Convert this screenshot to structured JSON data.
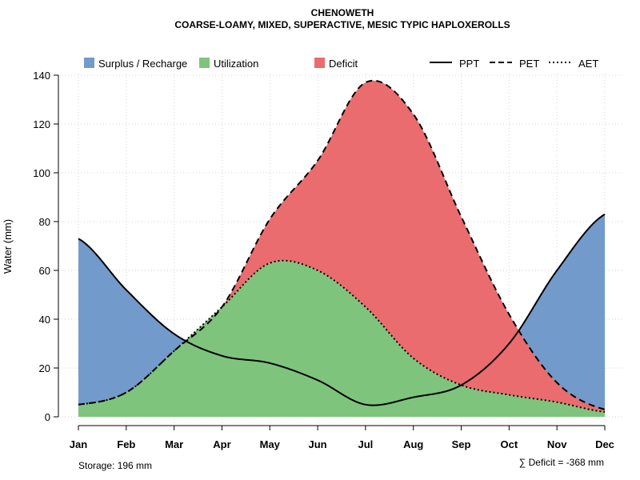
{
  "chart_data": {
    "type": "area",
    "title": "CHENOWETH",
    "subtitle": "COARSE-LOAMY, MIXED, SUPERACTIVE, MESIC TYPIC HAPLOXEROLLS",
    "xlabel": "",
    "ylabel": "Water (mm)",
    "ylim": [
      0,
      140
    ],
    "yticks": [
      0,
      20,
      40,
      60,
      80,
      100,
      120,
      140
    ],
    "grid": true,
    "categories": [
      "Jan",
      "Feb",
      "Mar",
      "Apr",
      "May",
      "Jun",
      "Jul",
      "Aug",
      "Sep",
      "Oct",
      "Nov",
      "Dec"
    ],
    "series": [
      {
        "name": "PPT",
        "style": "solid",
        "values": [
          73,
          52,
          34,
          25,
          22,
          15,
          5,
          8,
          13,
          30,
          60,
          83
        ]
      },
      {
        "name": "PET",
        "style": "dashed",
        "values": [
          5,
          10,
          27,
          45,
          81,
          105,
          137,
          124,
          82,
          42,
          14,
          3
        ]
      },
      {
        "name": "AET",
        "style": "dotted",
        "values": [
          5,
          10,
          27,
          45,
          63,
          60,
          45,
          24,
          13,
          9,
          6,
          2
        ]
      }
    ],
    "areas": [
      {
        "name": "Surplus / Recharge",
        "color": "#729ACA"
      },
      {
        "name": "Utilization",
        "color": "#7FC47C"
      },
      {
        "name": "Deficit",
        "color": "#EA6C6E"
      }
    ],
    "legend_placement": "top",
    "annotations": {
      "storage": "Storage: 196 mm",
      "deficit": "∑ Deficit = -368 mm"
    }
  }
}
